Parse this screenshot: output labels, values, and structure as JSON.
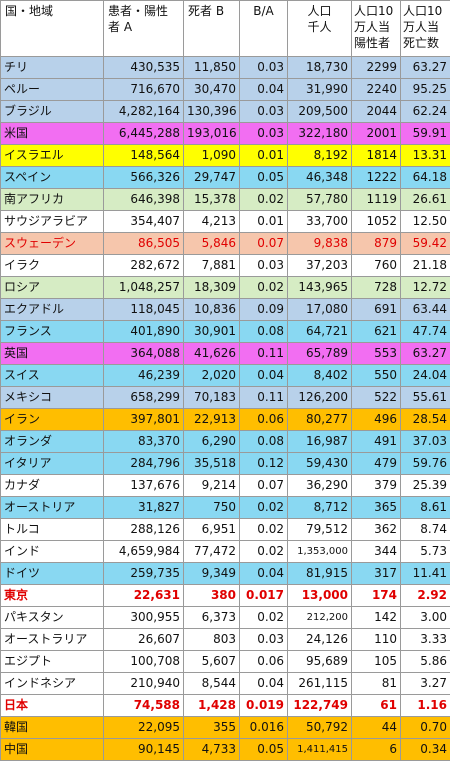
{
  "headers": {
    "country": "国・地域",
    "cases": [
      "患者・陽性",
      "者 A"
    ],
    "deaths": "死者 B",
    "ratio": "B/A",
    "population": [
      "人口",
      "千人"
    ],
    "cases_per_100k": [
      "人口10",
      "万人当",
      "陽性者"
    ],
    "deaths_per_100k": [
      "人口10",
      "万人当",
      "死亡数"
    ]
  },
  "colors": {
    "blue": "#b8d1ea",
    "cyan": "#89d8f2",
    "white": "#ffffff",
    "magenta": "#f26ef2",
    "yellow": "#ffff00",
    "green": "#d6ecc4",
    "salmon": "#f6c6ac",
    "orange": "#ffbe00"
  },
  "rows": [
    {
      "name": "チリ",
      "cases": "430,535",
      "deaths": "11,850",
      "ratio": "0.03",
      "pop": "18,730",
      "cp": "2299",
      "dp": "63.27",
      "bg": "blue"
    },
    {
      "name": "ペルー",
      "cases": "716,670",
      "deaths": "30,470",
      "ratio": "0.04",
      "pop": "31,990",
      "cp": "2240",
      "dp": "95.25",
      "bg": "blue"
    },
    {
      "name": "ブラジル",
      "cases": "4,282,164",
      "deaths": "130,396",
      "ratio": "0.03",
      "pop": "209,500",
      "cp": "2044",
      "dp": "62.24",
      "bg": "blue"
    },
    {
      "name": "米国",
      "cases": "6,445,288",
      "deaths": "193,016",
      "ratio": "0.03",
      "pop": "322,180",
      "cp": "2001",
      "dp": "59.91",
      "bg": "magenta"
    },
    {
      "name": "イスラエル",
      "cases": "148,564",
      "deaths": "1,090",
      "ratio": "0.01",
      "pop": "8,192",
      "cp": "1814",
      "dp": "13.31",
      "bg": "yellow"
    },
    {
      "name": "スペイン",
      "cases": "566,326",
      "deaths": "29,747",
      "ratio": "0.05",
      "pop": "46,348",
      "cp": "1222",
      "dp": "64.18",
      "bg": "cyan"
    },
    {
      "name": "南アフリカ",
      "cases": "646,398",
      "deaths": "15,378",
      "ratio": "0.02",
      "pop": "57,780",
      "cp": "1119",
      "dp": "26.61",
      "bg": "green"
    },
    {
      "name": "サウジアラビア",
      "cases": "354,407",
      "deaths": "4,213",
      "ratio": "0.01",
      "pop": "33,700",
      "cp": "1052",
      "dp": "12.50",
      "bg": "white"
    },
    {
      "name": "スウェーデン",
      "cases": "86,505",
      "deaths": "5,846",
      "ratio": "0.07",
      "pop": "9,838",
      "cp": "879",
      "dp": "59.42",
      "bg": "salmon",
      "style": "swe"
    },
    {
      "name": "イラク",
      "cases": "282,672",
      "deaths": "7,881",
      "ratio": "0.03",
      "pop": "37,203",
      "cp": "760",
      "dp": "21.18",
      "bg": "white"
    },
    {
      "name": "ロシア",
      "cases": "1,048,257",
      "deaths": "18,309",
      "ratio": "0.02",
      "pop": "143,965",
      "cp": "728",
      "dp": "12.72",
      "bg": "green"
    },
    {
      "name": "エクアドル",
      "cases": "118,045",
      "deaths": "10,836",
      "ratio": "0.09",
      "pop": "17,080",
      "cp": "691",
      "dp": "63.44",
      "bg": "blue"
    },
    {
      "name": "フランス",
      "cases": "401,890",
      "deaths": "30,901",
      "ratio": "0.08",
      "pop": "64,721",
      "cp": "621",
      "dp": "47.74",
      "bg": "cyan"
    },
    {
      "name": "英国",
      "cases": "364,088",
      "deaths": "41,626",
      "ratio": "0.11",
      "pop": "65,789",
      "cp": "553",
      "dp": "63.27",
      "bg": "magenta"
    },
    {
      "name": "スイス",
      "cases": "46,239",
      "deaths": "2,020",
      "ratio": "0.04",
      "pop": "8,402",
      "cp": "550",
      "dp": "24.04",
      "bg": "cyan"
    },
    {
      "name": "メキシコ",
      "cases": "658,299",
      "deaths": "70,183",
      "ratio": "0.11",
      "pop": "126,200",
      "cp": "522",
      "dp": "55.61",
      "bg": "blue"
    },
    {
      "name": "イラン",
      "cases": "397,801",
      "deaths": "22,913",
      "ratio": "0.06",
      "pop": "80,277",
      "cp": "496",
      "dp": "28.54",
      "bg": "orange"
    },
    {
      "name": "オランダ",
      "cases": "83,370",
      "deaths": "6,290",
      "ratio": "0.08",
      "pop": "16,987",
      "cp": "491",
      "dp": "37.03",
      "bg": "cyan"
    },
    {
      "name": "イタリア",
      "cases": "284,796",
      "deaths": "35,518",
      "ratio": "0.12",
      "pop": "59,430",
      "cp": "479",
      "dp": "59.76",
      "bg": "cyan"
    },
    {
      "name": "カナダ",
      "cases": "137,676",
      "deaths": "9,214",
      "ratio": "0.07",
      "pop": "36,290",
      "cp": "379",
      "dp": "25.39",
      "bg": "white"
    },
    {
      "name": "オーストリア",
      "cases": "31,827",
      "deaths": "750",
      "ratio": "0.02",
      "pop": "8,712",
      "cp": "365",
      "dp": "8.61",
      "bg": "cyan"
    },
    {
      "name": "トルコ",
      "cases": "288,126",
      "deaths": "6,951",
      "ratio": "0.02",
      "pop": "79,512",
      "cp": "362",
      "dp": "8.74",
      "bg": "white"
    },
    {
      "name": "インド",
      "cases": "4,659,984",
      "deaths": "77,472",
      "ratio": "0.02",
      "pop": "1,353,000",
      "cp": "344",
      "dp": "5.73",
      "bg": "white",
      "small_pop": true
    },
    {
      "name": "ドイツ",
      "cases": "259,735",
      "deaths": "9,349",
      "ratio": "0.04",
      "pop": "81,915",
      "cp": "317",
      "dp": "11.41",
      "bg": "cyan"
    },
    {
      "name": "東京",
      "cases": "22,631",
      "deaths": "380",
      "ratio": "0.017",
      "pop": "13,000",
      "cp": "174",
      "dp": "2.92",
      "bg": "white",
      "style": "bold"
    },
    {
      "name": "パキスタン",
      "cases": "300,955",
      "deaths": "6,373",
      "ratio": "0.02",
      "pop": "212,200",
      "cp": "142",
      "dp": "3.00",
      "bg": "white",
      "small_pop": true
    },
    {
      "name": "オーストラリア",
      "cases": "26,607",
      "deaths": "803",
      "ratio": "0.03",
      "pop": "24,126",
      "cp": "110",
      "dp": "3.33",
      "bg": "white"
    },
    {
      "name": "エジプト",
      "cases": "100,708",
      "deaths": "5,607",
      "ratio": "0.06",
      "pop": "95,689",
      "cp": "105",
      "dp": "5.86",
      "bg": "white"
    },
    {
      "name": "インドネシア",
      "cases": "210,940",
      "deaths": "8,544",
      "ratio": "0.04",
      "pop": "261,115",
      "cp": "81",
      "dp": "3.27",
      "bg": "white"
    },
    {
      "name": "日本",
      "cases": "74,588",
      "deaths": "1,428",
      "ratio": "0.019",
      "pop": "122,749",
      "cp": "61",
      "dp": "1.16",
      "bg": "white",
      "style": "bold"
    },
    {
      "name": "韓国",
      "cases": "22,095",
      "deaths": "355",
      "ratio": "0.016",
      "pop": "50,792",
      "cp": "44",
      "dp": "0.70",
      "bg": "orange"
    },
    {
      "name": "中国",
      "cases": "90,145",
      "deaths": "4,733",
      "ratio": "0.05",
      "pop": "1,411,415",
      "cp": "6",
      "dp": "0.34",
      "bg": "orange",
      "small_pop": true
    }
  ]
}
